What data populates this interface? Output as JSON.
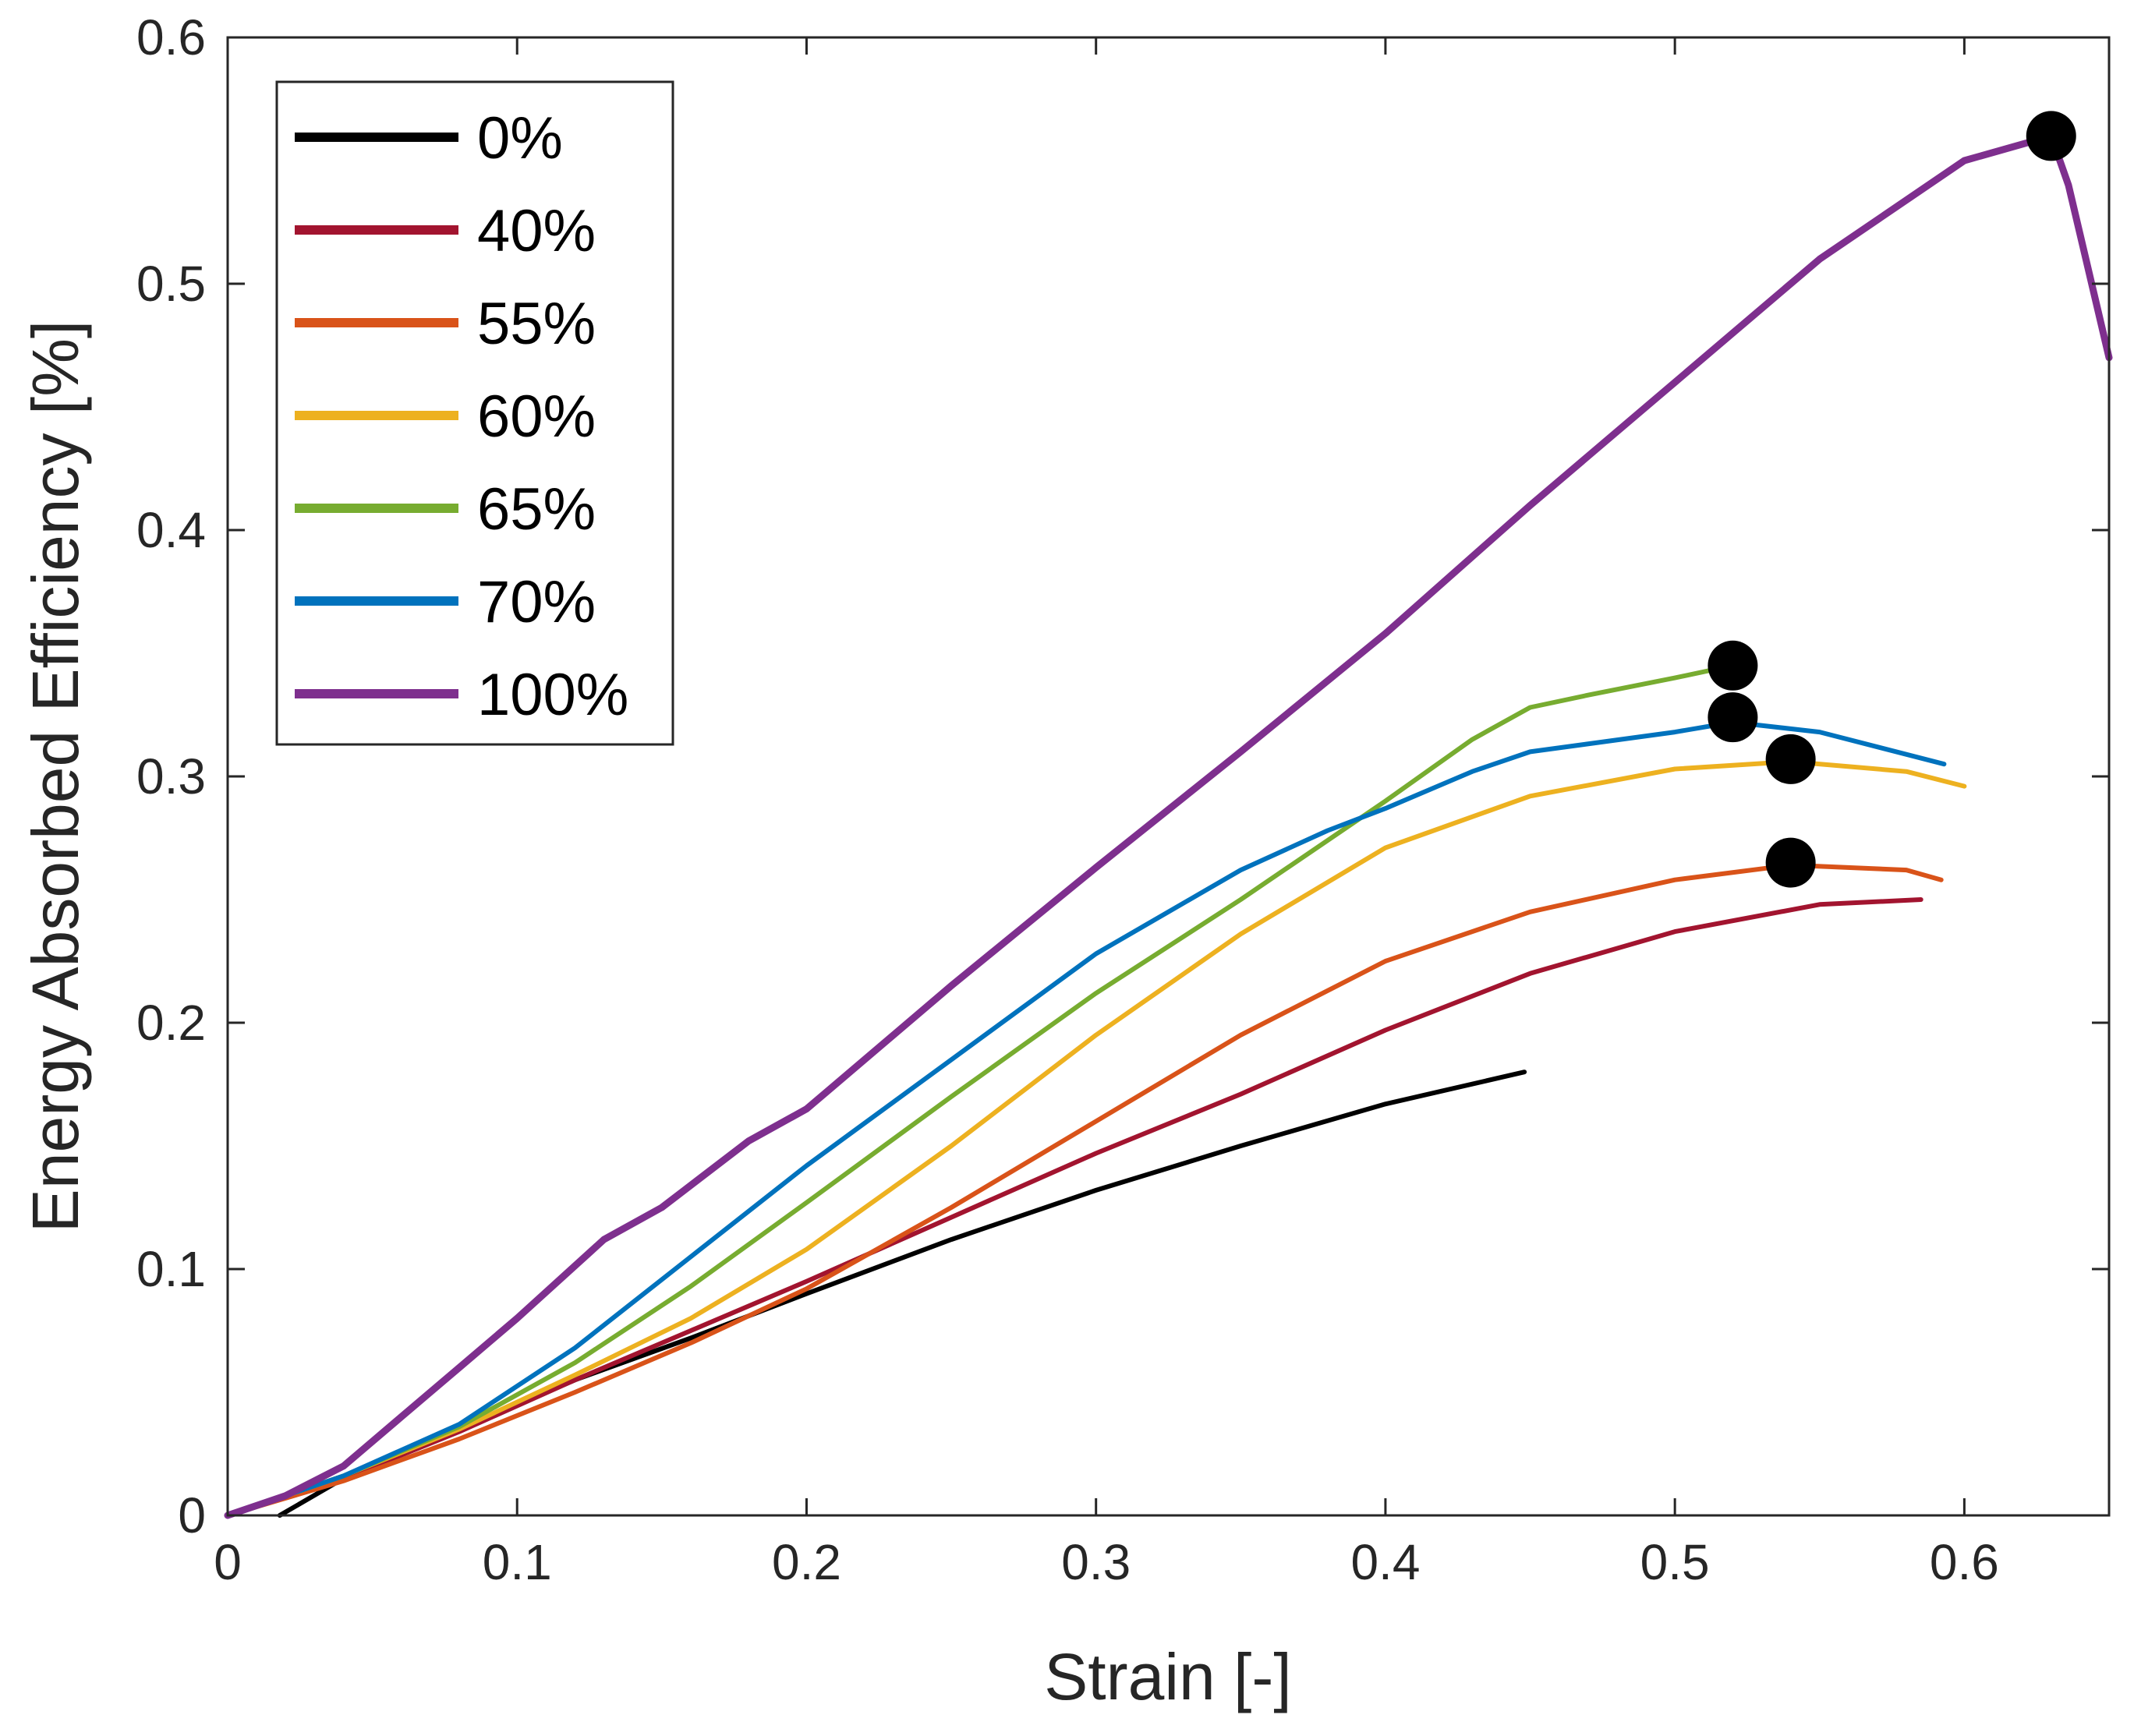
{
  "chart_data": {
    "type": "line",
    "title": "",
    "xlabel": "Strain [-]",
    "ylabel": "Energy Absorbed Efficiency [%]",
    "xlim": [
      0,
      0.65
    ],
    "ylim": [
      0,
      0.6
    ],
    "xticks": [
      0,
      0.1,
      0.2,
      0.3,
      0.4,
      0.5,
      0.6
    ],
    "xtick_labels": [
      "0",
      "0.1",
      "0.2",
      "0.3",
      "0.4",
      "0.5",
      "0.6"
    ],
    "yticks": [
      0,
      0.1,
      0.2,
      0.3,
      0.4,
      0.5,
      0.6
    ],
    "ytick_labels": [
      "0",
      "0.1",
      "0.2",
      "0.3",
      "0.4",
      "0.5",
      "0.6"
    ],
    "grid": false,
    "legend_position": "top-left",
    "series": [
      {
        "name": "0%",
        "color": "#000000",
        "x": [
          0.018,
          0.04,
          0.08,
          0.12,
          0.16,
          0.2,
          0.25,
          0.3,
          0.35,
          0.4,
          0.448
        ],
        "y": [
          0.0,
          0.015,
          0.035,
          0.055,
          0.072,
          0.09,
          0.112,
          0.132,
          0.15,
          0.167,
          0.18
        ]
      },
      {
        "name": "40%",
        "color": "#A2142F",
        "x": [
          0.0,
          0.04,
          0.08,
          0.12,
          0.16,
          0.2,
          0.25,
          0.3,
          0.35,
          0.4,
          0.45,
          0.5,
          0.55,
          0.585
        ],
        "y": [
          0.0,
          0.015,
          0.034,
          0.055,
          0.075,
          0.095,
          0.121,
          0.147,
          0.171,
          0.197,
          0.22,
          0.237,
          0.248,
          0.25
        ]
      },
      {
        "name": "55%",
        "color": "#D95319",
        "x": [
          0.0,
          0.04,
          0.08,
          0.12,
          0.16,
          0.2,
          0.25,
          0.3,
          0.35,
          0.4,
          0.45,
          0.5,
          0.54,
          0.58,
          0.592
        ],
        "y": [
          0.0,
          0.014,
          0.031,
          0.05,
          0.07,
          0.092,
          0.125,
          0.16,
          0.195,
          0.225,
          0.245,
          0.258,
          0.264,
          0.262,
          0.258
        ]
      },
      {
        "name": "60%",
        "color": "#EDB120",
        "x": [
          0.0,
          0.04,
          0.08,
          0.12,
          0.16,
          0.2,
          0.25,
          0.3,
          0.35,
          0.4,
          0.45,
          0.5,
          0.54,
          0.58,
          0.6
        ],
        "y": [
          0.0,
          0.016,
          0.035,
          0.057,
          0.08,
          0.108,
          0.15,
          0.195,
          0.236,
          0.271,
          0.292,
          0.303,
          0.306,
          0.302,
          0.296
        ]
      },
      {
        "name": "65%",
        "color": "#77AC30",
        "x": [
          0.0,
          0.04,
          0.08,
          0.12,
          0.16,
          0.2,
          0.25,
          0.3,
          0.35,
          0.4,
          0.43,
          0.45,
          0.47,
          0.5,
          0.52
        ],
        "y": [
          0.0,
          0.016,
          0.036,
          0.062,
          0.093,
          0.127,
          0.17,
          0.212,
          0.25,
          0.29,
          0.315,
          0.328,
          0.333,
          0.34,
          0.345
        ]
      },
      {
        "name": "70%",
        "color": "#0072BD",
        "x": [
          0.0,
          0.04,
          0.08,
          0.12,
          0.16,
          0.2,
          0.25,
          0.3,
          0.35,
          0.38,
          0.4,
          0.43,
          0.45,
          0.5,
          0.52,
          0.55,
          0.593
        ],
        "y": [
          0.0,
          0.016,
          0.037,
          0.068,
          0.105,
          0.142,
          0.185,
          0.228,
          0.262,
          0.278,
          0.287,
          0.302,
          0.31,
          0.318,
          0.322,
          0.318,
          0.305
        ]
      },
      {
        "name": "100%",
        "color": "#7E2F8E",
        "x": [
          0.0,
          0.02,
          0.04,
          0.06,
          0.08,
          0.1,
          0.13,
          0.15,
          0.18,
          0.2,
          0.25,
          0.3,
          0.35,
          0.4,
          0.45,
          0.5,
          0.55,
          0.6,
          0.63,
          0.636,
          0.642,
          0.65
        ],
        "y": [
          0.0,
          0.008,
          0.02,
          0.04,
          0.06,
          0.08,
          0.112,
          0.125,
          0.152,
          0.165,
          0.215,
          0.263,
          0.31,
          0.358,
          0.41,
          0.46,
          0.51,
          0.55,
          0.56,
          0.54,
          0.51,
          0.47
        ]
      }
    ],
    "markers": [
      {
        "series": "100%",
        "x": 0.63,
        "y": 0.56
      },
      {
        "series": "65%",
        "x": 0.52,
        "y": 0.345
      },
      {
        "series": "70%",
        "x": 0.52,
        "y": 0.324
      },
      {
        "series": "60%",
        "x": 0.54,
        "y": 0.307
      },
      {
        "series": "55%",
        "x": 0.54,
        "y": 0.265
      }
    ]
  }
}
